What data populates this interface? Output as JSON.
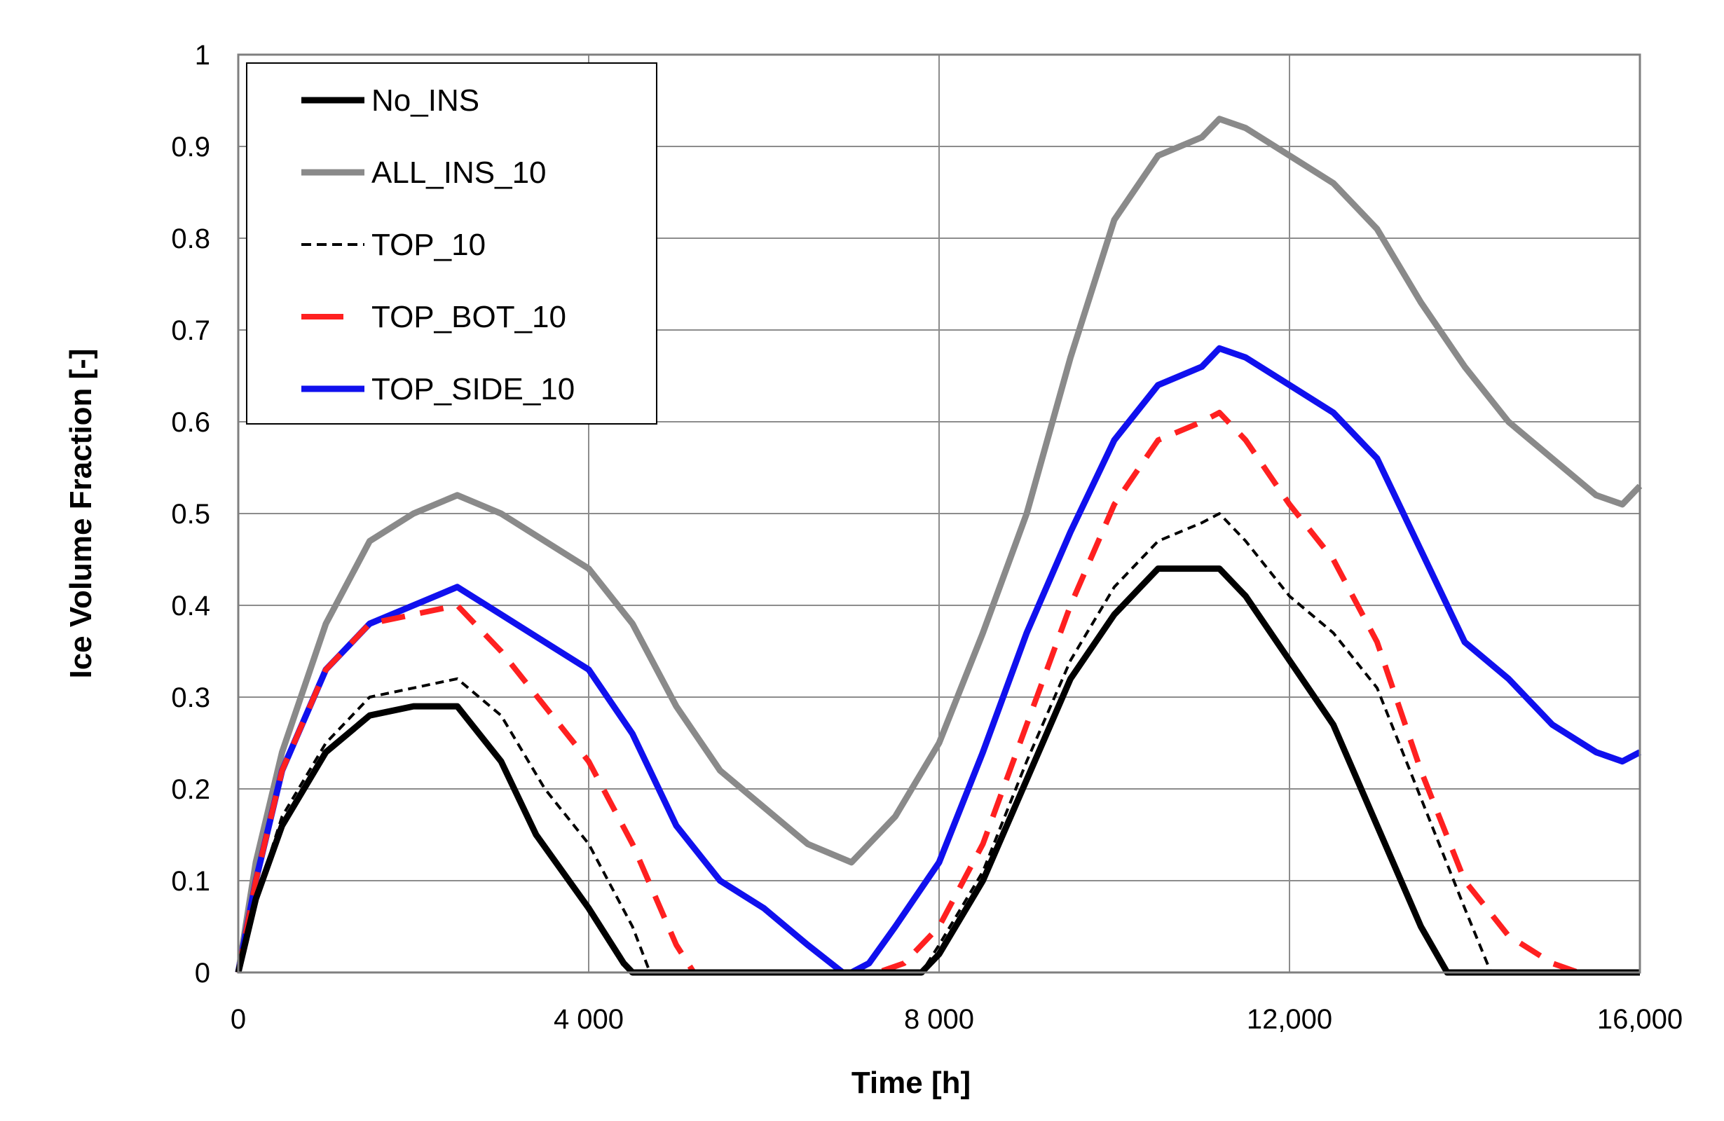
{
  "chart_data": {
    "type": "line",
    "title": "",
    "xlabel": "Time [h]",
    "ylabel": "Ice Volume Fraction [-]",
    "xlim": [
      0,
      16000
    ],
    "ylim": [
      0,
      1
    ],
    "grid": true,
    "legend_position": "top-left",
    "x_ticks": [
      0,
      4000,
      8000,
      12000,
      16000
    ],
    "x_tick_labels": [
      "0",
      "4 000",
      "8 000",
      "12,000",
      "16,000"
    ],
    "y_ticks": [
      0,
      0.1,
      0.2,
      0.3,
      0.4,
      0.5,
      0.6,
      0.7,
      0.8,
      0.9,
      1
    ],
    "y_tick_labels": [
      "0",
      "0.1",
      "0.2",
      "0.3",
      "0.4",
      "0.5",
      "0.6",
      "0.7",
      "0.8",
      "0.9",
      "1"
    ],
    "series": [
      {
        "name": "No_INS",
        "color": "#000000",
        "style": "solid-thick",
        "x": [
          0,
          200,
          500,
          1000,
          1500,
          2000,
          2500,
          3000,
          3400,
          4000,
          4400,
          4500,
          5000,
          6000,
          7000,
          7500,
          7800,
          8000,
          8500,
          9000,
          9500,
          10000,
          10500,
          11000,
          11200,
          11500,
          12000,
          12500,
          13000,
          13500,
          13800,
          14000,
          15000,
          16000
        ],
        "values": [
          0,
          0.08,
          0.16,
          0.24,
          0.28,
          0.29,
          0.29,
          0.23,
          0.15,
          0.07,
          0.01,
          0,
          0,
          0,
          0,
          0,
          0,
          0.02,
          0.1,
          0.21,
          0.32,
          0.39,
          0.44,
          0.44,
          0.44,
          0.41,
          0.34,
          0.27,
          0.16,
          0.05,
          0,
          0,
          0,
          0
        ]
      },
      {
        "name": "ALL_INS_10",
        "color": "#8a8a8a",
        "style": "solid-thick",
        "x": [
          0,
          200,
          500,
          1000,
          1500,
          2000,
          2500,
          3000,
          3500,
          4000,
          4500,
          5000,
          5500,
          6000,
          6500,
          7000,
          7500,
          8000,
          8500,
          9000,
          9500,
          10000,
          10500,
          11000,
          11200,
          11500,
          12000,
          12500,
          13000,
          13500,
          14000,
          14500,
          15000,
          15500,
          15800,
          16000
        ],
        "values": [
          0,
          0.12,
          0.24,
          0.38,
          0.47,
          0.5,
          0.52,
          0.5,
          0.47,
          0.44,
          0.38,
          0.29,
          0.22,
          0.18,
          0.14,
          0.12,
          0.17,
          0.25,
          0.37,
          0.5,
          0.67,
          0.82,
          0.89,
          0.91,
          0.93,
          0.92,
          0.89,
          0.86,
          0.81,
          0.73,
          0.66,
          0.6,
          0.56,
          0.52,
          0.51,
          0.53
        ]
      },
      {
        "name": "TOP_10",
        "color": "#000000",
        "style": "dotted",
        "x": [
          0,
          200,
          500,
          1000,
          1500,
          2000,
          2500,
          3000,
          3500,
          4000,
          4500,
          4700,
          5000,
          6000,
          7000,
          7500,
          7800,
          8000,
          8500,
          9000,
          9500,
          10000,
          10500,
          11000,
          11200,
          11500,
          12000,
          12500,
          13000,
          13500,
          14000,
          14300,
          15000,
          16000
        ],
        "values": [
          0,
          0.08,
          0.17,
          0.25,
          0.3,
          0.31,
          0.32,
          0.28,
          0.2,
          0.14,
          0.05,
          0,
          0,
          0,
          0,
          0,
          0,
          0.03,
          0.11,
          0.23,
          0.34,
          0.42,
          0.47,
          0.49,
          0.5,
          0.47,
          0.41,
          0.37,
          0.31,
          0.19,
          0.07,
          0,
          0,
          0
        ]
      },
      {
        "name": "TOP_BOT_10",
        "color": "#ff2020",
        "style": "dashed",
        "x": [
          0,
          200,
          500,
          1000,
          1500,
          2000,
          2500,
          3000,
          3500,
          4000,
          4500,
          5000,
          5200,
          6000,
          7000,
          7300,
          7600,
          8000,
          8500,
          9000,
          9500,
          10000,
          10500,
          11000,
          11200,
          11500,
          12000,
          12500,
          13000,
          13500,
          14000,
          14500,
          15000,
          15300,
          16000
        ],
        "values": [
          0,
          0.1,
          0.22,
          0.33,
          0.38,
          0.39,
          0.4,
          0.35,
          0.29,
          0.23,
          0.14,
          0.03,
          0,
          0,
          0,
          0,
          0.01,
          0.05,
          0.14,
          0.27,
          0.4,
          0.51,
          0.58,
          0.6,
          0.61,
          0.58,
          0.51,
          0.45,
          0.36,
          0.22,
          0.1,
          0.04,
          0.01,
          0,
          0
        ]
      },
      {
        "name": "TOP_SIDE_10",
        "color": "#1010ee",
        "style": "solid-thick",
        "x": [
          0,
          200,
          500,
          1000,
          1500,
          2000,
          2500,
          3000,
          3500,
          4000,
          4500,
          5000,
          5500,
          6000,
          6500,
          6900,
          7000,
          7200,
          7500,
          8000,
          8500,
          9000,
          9500,
          10000,
          10500,
          11000,
          11200,
          11500,
          12000,
          12500,
          13000,
          13500,
          14000,
          14500,
          15000,
          15500,
          15800,
          16000
        ],
        "values": [
          0,
          0.1,
          0.22,
          0.33,
          0.38,
          0.4,
          0.42,
          0.39,
          0.36,
          0.33,
          0.26,
          0.16,
          0.1,
          0.07,
          0.03,
          0,
          0,
          0.01,
          0.05,
          0.12,
          0.24,
          0.37,
          0.48,
          0.58,
          0.64,
          0.66,
          0.68,
          0.67,
          0.64,
          0.61,
          0.56,
          0.46,
          0.36,
          0.32,
          0.27,
          0.24,
          0.23,
          0.24
        ]
      }
    ]
  }
}
